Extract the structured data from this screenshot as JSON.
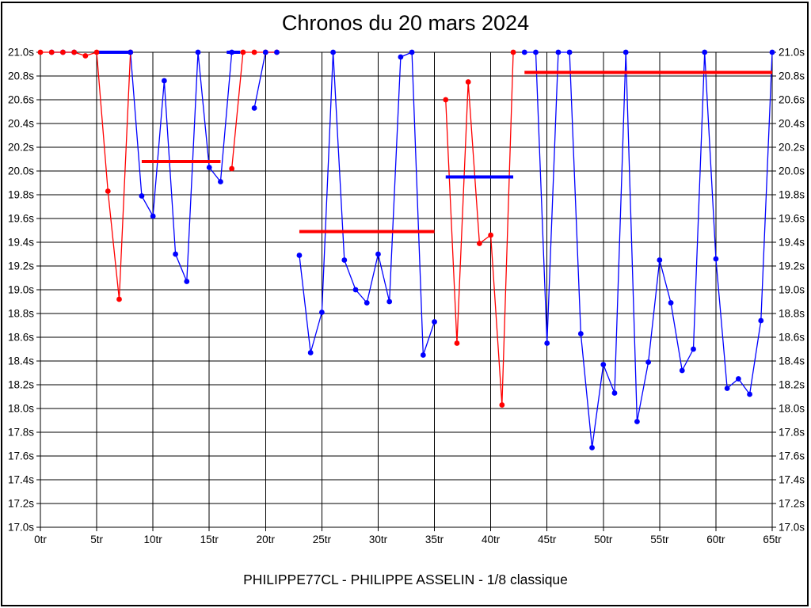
{
  "title": "Chronos du 20 mars 2024",
  "caption": "PHILIPPE77CL - PHILIPPE ASSELIN - 1/8 classique",
  "frame": {
    "border_color": "#000000",
    "background": "#ffffff"
  },
  "chart_data": {
    "type": "line",
    "title": "Chronos du 20 mars 2024",
    "x_unit": "tr",
    "y_unit": "s",
    "xlim": [
      0,
      65
    ],
    "ylim": [
      17.0,
      21.0
    ],
    "clip_max": 21.0,
    "grid": true,
    "legend": "none",
    "x_tick_values": [
      0,
      5,
      10,
      15,
      20,
      25,
      30,
      35,
      40,
      45,
      50,
      55,
      60,
      65
    ],
    "x_tick_labels": [
      "0tr",
      "5tr",
      "10tr",
      "15tr",
      "20tr",
      "25tr",
      "30tr",
      "35tr",
      "40tr",
      "45tr",
      "50tr",
      "55tr",
      "60tr",
      "65tr"
    ],
    "y_tick_values": [
      21.0,
      20.8,
      20.6,
      20.4,
      20.2,
      20.0,
      19.8,
      19.6,
      19.4,
      19.2,
      19.0,
      18.8,
      18.6,
      18.4,
      18.2,
      18.0,
      17.8,
      17.6,
      17.4,
      17.2,
      17.0
    ],
    "y_tick_labels": [
      "21.0s",
      "20.8s",
      "20.6s",
      "20.4s",
      "20.2s",
      "20.0s",
      "19.8s",
      "19.6s",
      "19.4s",
      "19.2s",
      "19.0s",
      "18.8s",
      "18.6s",
      "18.4s",
      "18.2s",
      "18.0s",
      "17.8s",
      "17.6s",
      "17.4s",
      "17.2s",
      "17.0s"
    ],
    "colors": {
      "red": "#ff0000",
      "blue": "#0000ff"
    },
    "series": [
      {
        "name": "blue-run-1",
        "color": "blue",
        "points": [
          [
            1,
            21.0
          ],
          [
            2,
            21.0
          ],
          [
            3,
            21.0
          ]
        ]
      },
      {
        "name": "blue-run-2",
        "color": "blue",
        "points": [
          [
            8,
            21.0
          ],
          [
            9,
            19.79
          ],
          [
            10,
            19.62
          ],
          [
            11,
            20.76
          ],
          [
            12,
            19.3
          ],
          [
            13,
            19.07
          ],
          [
            14,
            21.0
          ],
          [
            15,
            20.03
          ],
          [
            16,
            19.91
          ],
          [
            17,
            21.0
          ]
        ]
      },
      {
        "name": "blue-run-3",
        "color": "blue",
        "points": [
          [
            19,
            20.53
          ],
          [
            20,
            21.0
          ],
          [
            21,
            21.0
          ]
        ]
      },
      {
        "name": "blue-run-4",
        "color": "blue",
        "points": [
          [
            23,
            19.29
          ],
          [
            24,
            18.47
          ],
          [
            25,
            18.81
          ],
          [
            26,
            21.0
          ],
          [
            27,
            19.25
          ],
          [
            28,
            19.0
          ],
          [
            29,
            18.89
          ],
          [
            30,
            19.3
          ],
          [
            31,
            18.9
          ],
          [
            32,
            20.96
          ],
          [
            33,
            21.0
          ],
          [
            34,
            18.45
          ],
          [
            35,
            18.73
          ]
        ]
      },
      {
        "name": "blue-run-5",
        "color": "blue",
        "points": [
          [
            43,
            21.0
          ],
          [
            44,
            21.0
          ],
          [
            45,
            18.55
          ],
          [
            46,
            21.0
          ],
          [
            47,
            21.0
          ],
          [
            48,
            18.63
          ],
          [
            49,
            17.67
          ],
          [
            50,
            18.37
          ],
          [
            51,
            18.13
          ],
          [
            52,
            21.0
          ],
          [
            53,
            17.89
          ],
          [
            54,
            18.39
          ],
          [
            55,
            19.25
          ],
          [
            56,
            18.89
          ],
          [
            57,
            18.32
          ],
          [
            58,
            18.5
          ],
          [
            59,
            21.0
          ],
          [
            60,
            19.26
          ],
          [
            61,
            18.17
          ],
          [
            62,
            18.25
          ],
          [
            63,
            18.12
          ],
          [
            64,
            18.74
          ],
          [
            65,
            21.0
          ]
        ]
      },
      {
        "name": "red-run-1",
        "color": "red",
        "points": [
          [
            0,
            21.0
          ],
          [
            1,
            21.0
          ],
          [
            2,
            21.0
          ],
          [
            3,
            21.0
          ],
          [
            4,
            20.97
          ],
          [
            5,
            21.0
          ],
          [
            6,
            19.83
          ],
          [
            7,
            18.92
          ],
          [
            8,
            21.0
          ]
        ]
      },
      {
        "name": "red-run-2",
        "color": "red",
        "points": [
          [
            17,
            20.02
          ],
          [
            18,
            21.0
          ],
          [
            19,
            21.0
          ],
          [
            20,
            21.0
          ],
          [
            21,
            21.0
          ]
        ]
      },
      {
        "name": "red-run-3",
        "color": "red",
        "points": [
          [
            36,
            20.6
          ],
          [
            37,
            18.55
          ],
          [
            38,
            20.75
          ],
          [
            39,
            19.39
          ],
          [
            40,
            19.46
          ],
          [
            41,
            18.03
          ],
          [
            42,
            21.0
          ]
        ]
      }
    ],
    "average_lines": [
      {
        "color": "blue",
        "from": 4.85,
        "to": 8.0,
        "value": 21.0
      },
      {
        "color": "red",
        "from": 9.0,
        "to": 16.0,
        "value": 20.08
      },
      {
        "color": "blue",
        "from": 16.55,
        "to": 17.75,
        "value": 21.0
      },
      {
        "color": "red",
        "from": 23.0,
        "to": 35.0,
        "value": 19.49
      },
      {
        "color": "blue",
        "from": 36.0,
        "to": 42.0,
        "value": 19.95
      },
      {
        "color": "red",
        "from": 43.0,
        "to": 65.0,
        "value": 20.83
      }
    ]
  }
}
